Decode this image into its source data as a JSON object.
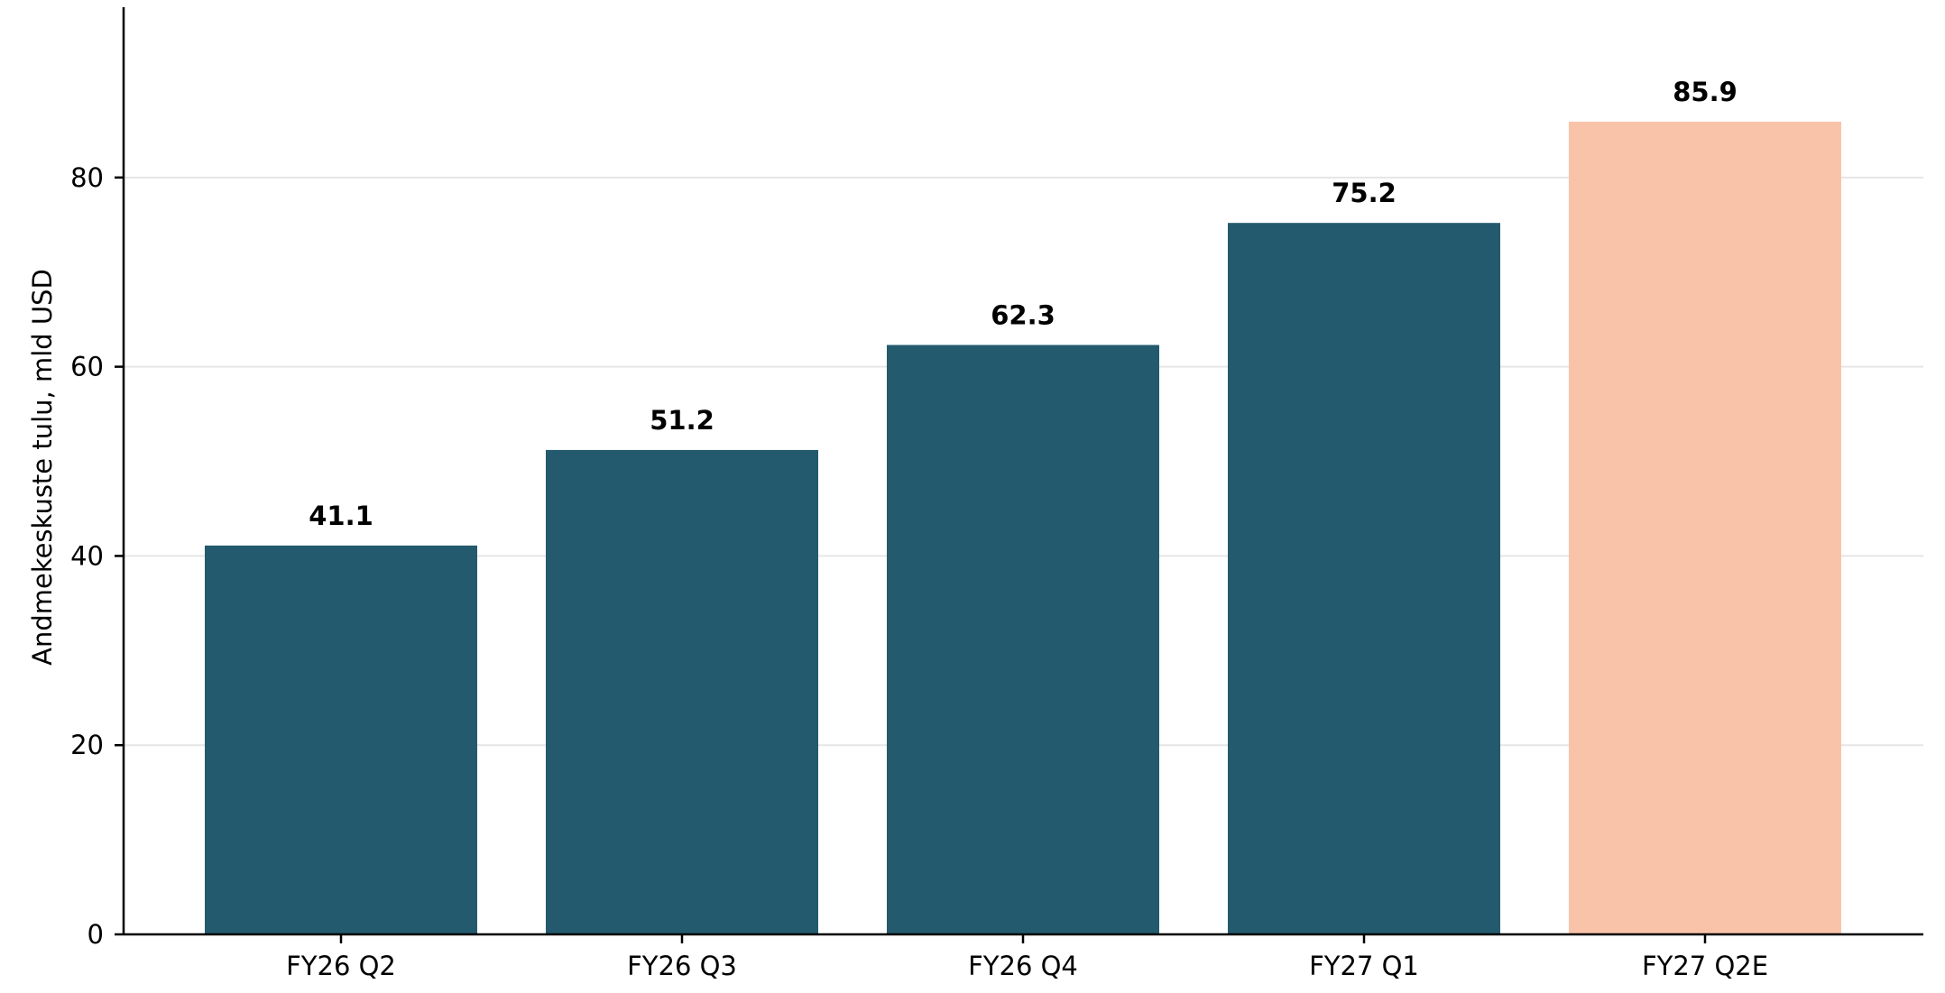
{
  "chart_data": {
    "type": "bar",
    "categories": [
      "FY26 Q2",
      "FY26 Q3",
      "FY26 Q4",
      "FY27 Q1",
      "FY27 Q2E"
    ],
    "values": [
      41.1,
      51.2,
      62.3,
      75.2,
      85.9
    ],
    "value_labels": [
      "41.1",
      "51.2",
      "62.3",
      "75.2",
      "85.9"
    ],
    "bar_colors": [
      "#245a6d",
      "#245a6d",
      "#245a6d",
      "#245a6d",
      "#f9c3a9"
    ],
    "xlabel": "",
    "ylabel": "Andmekeskuste tulu, mld USD",
    "ylim": [
      0,
      98
    ],
    "yticks": [
      0,
      20,
      40,
      60,
      80
    ],
    "grid": "horizontal",
    "legend": "none"
  }
}
